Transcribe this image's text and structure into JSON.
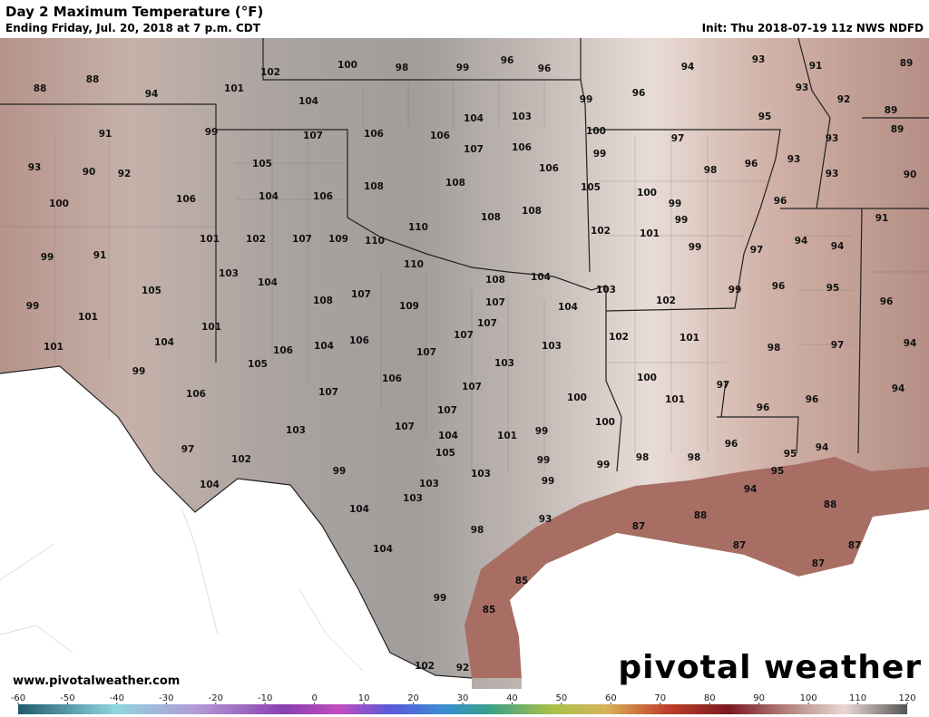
{
  "header": {
    "title": "Day 2 Maximum Temperature (°F)",
    "subtitle": "Ending Friday, Jul. 20, 2018 at 7 p.m. CDT",
    "init": "Init: Thu 2018-07-19 11z NWS NDFD"
  },
  "map": {
    "temperature_labels": [
      88,
      88,
      94,
      101,
      102,
      100,
      98,
      99,
      96,
      96,
      94,
      93,
      91,
      89,
      93,
      92,
      96,
      99,
      104,
      99,
      91,
      107,
      106,
      104,
      103,
      106,
      107,
      106,
      100,
      97,
      95,
      89,
      89,
      93,
      93,
      90,
      92,
      105,
      106,
      99,
      98,
      96,
      93,
      93,
      90,
      100,
      106,
      104,
      106,
      108,
      108,
      108,
      105,
      100,
      99,
      96,
      108,
      110,
      99,
      91,
      101,
      102,
      107,
      109,
      110,
      102,
      101,
      99,
      97,
      94,
      94,
      99,
      91,
      103,
      104,
      110,
      108,
      104,
      103,
      102,
      99,
      96,
      95,
      96,
      105,
      108,
      107,
      109,
      107,
      104,
      99,
      101,
      107,
      101,
      104,
      106,
      104,
      106,
      107,
      103,
      102,
      101,
      98,
      97,
      94,
      101,
      107,
      103,
      105,
      99,
      106,
      107,
      100,
      97,
      94,
      106,
      107,
      100,
      101,
      96,
      96,
      107,
      107,
      100,
      103,
      104,
      101,
      99,
      96,
      94,
      97,
      105,
      99,
      98,
      98,
      95,
      102,
      99,
      103,
      99,
      95,
      99,
      103,
      104,
      94,
      103,
      104,
      88,
      93,
      87,
      88,
      98,
      87,
      87,
      104,
      87,
      85,
      99,
      85,
      102,
      92
    ]
  },
  "footer": {
    "website": "www.pivotalweather.com",
    "logo": "pivotal weather"
  },
  "colorbar": {
    "ticks": [
      -60,
      -50,
      -40,
      -30,
      -20,
      -10,
      0,
      10,
      20,
      30,
      40,
      50,
      60,
      70,
      80,
      90,
      100,
      110,
      120
    ]
  }
}
